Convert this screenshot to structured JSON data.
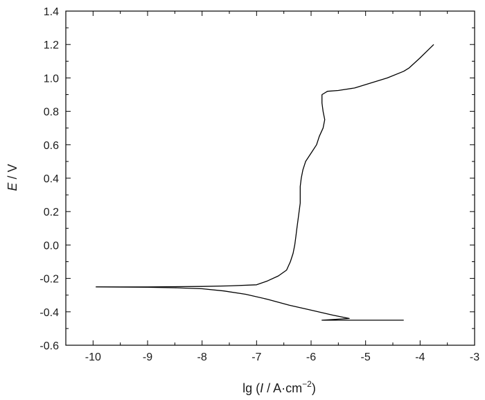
{
  "chart_data": {
    "type": "line",
    "xlabel": {
      "prefix": "lg (",
      "italic": "I",
      "unit": " / A·cm",
      "sup": "−2",
      "suffix": ")"
    },
    "ylabel": {
      "italic": "E",
      "unit": " / V"
    },
    "xlim": [
      -10.5,
      -3
    ],
    "ylim": [
      -0.6,
      1.4
    ],
    "xticks": [
      -10,
      -9,
      -8,
      -7,
      -6,
      -5,
      -4,
      -3
    ],
    "xtick_labels": [
      "-10",
      "-9",
      "-8",
      "-7",
      "-6",
      "-5",
      "-4",
      "-3"
    ],
    "yticks": [
      -0.6,
      -0.4,
      -0.2,
      0.0,
      0.2,
      0.4,
      0.6,
      0.8,
      1.0,
      1.2,
      1.4
    ],
    "ytick_labels": [
      "-0.6",
      "-0.4",
      "-0.2",
      "0.0",
      "0.2",
      "0.4",
      "0.6",
      "0.8",
      "1.0",
      "1.2",
      "1.4"
    ],
    "grid": false,
    "legend": "none",
    "line_color": "#000000",
    "series": [
      {
        "id": "cathodic",
        "points": [
          [
            -4.3,
            -0.45
          ],
          [
            -5.2,
            -0.45
          ],
          [
            -5.8,
            -0.45
          ],
          [
            -5.3,
            -0.44
          ],
          [
            -5.6,
            -0.42
          ],
          [
            -6.0,
            -0.39
          ],
          [
            -6.4,
            -0.36
          ],
          [
            -6.8,
            -0.325
          ],
          [
            -7.2,
            -0.295
          ],
          [
            -7.6,
            -0.275
          ],
          [
            -8.0,
            -0.262
          ],
          [
            -8.5,
            -0.256
          ],
          [
            -9.0,
            -0.253
          ],
          [
            -9.5,
            -0.252
          ],
          [
            -9.95,
            -0.251
          ]
        ]
      },
      {
        "id": "anodic",
        "points": [
          [
            -9.95,
            -0.251
          ],
          [
            -9.0,
            -0.251
          ],
          [
            -8.0,
            -0.248
          ],
          [
            -7.5,
            -0.245
          ],
          [
            -7.0,
            -0.238
          ],
          [
            -6.8,
            -0.215
          ],
          [
            -6.6,
            -0.185
          ],
          [
            -6.45,
            -0.15
          ],
          [
            -6.38,
            -0.1
          ],
          [
            -6.33,
            -0.05
          ],
          [
            -6.3,
            0.0
          ],
          [
            -6.28,
            0.05
          ],
          [
            -6.26,
            0.1
          ],
          [
            -6.24,
            0.15
          ],
          [
            -6.22,
            0.2
          ],
          [
            -6.2,
            0.25
          ],
          [
            -6.2,
            0.3
          ],
          [
            -6.2,
            0.35
          ],
          [
            -6.18,
            0.4
          ],
          [
            -6.15,
            0.45
          ],
          [
            -6.1,
            0.5
          ],
          [
            -6.0,
            0.55
          ],
          [
            -5.9,
            0.6
          ],
          [
            -5.85,
            0.65
          ],
          [
            -5.78,
            0.7
          ],
          [
            -5.75,
            0.75
          ],
          [
            -5.78,
            0.8
          ],
          [
            -5.8,
            0.85
          ],
          [
            -5.8,
            0.9
          ],
          [
            -5.7,
            0.92
          ],
          [
            -5.5,
            0.925
          ],
          [
            -5.2,
            0.94
          ],
          [
            -4.9,
            0.97
          ],
          [
            -4.6,
            1.0
          ],
          [
            -4.3,
            1.04
          ],
          [
            -4.2,
            1.06
          ],
          [
            -4.0,
            1.12
          ],
          [
            -3.75,
            1.2
          ]
        ]
      }
    ]
  }
}
